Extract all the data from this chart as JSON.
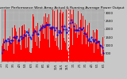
{
  "title": "Solar PV/Inverter Performance West Array Actual & Running Average Power Output",
  "bg_color": "#c8c8c8",
  "plot_bg_color": "#b0b0b0",
  "bar_color": "#ff0000",
  "avg_color": "#0000dd",
  "grid_color": "#e8e8e8",
  "vline_color": "#ffffff",
  "y_max": 3200,
  "y_ticks": [
    500,
    1000,
    1500,
    2000,
    2500,
    3000
  ],
  "tick_fontsize": 2.8,
  "title_fontsize": 3.2,
  "legend_fontsize": 2.5
}
